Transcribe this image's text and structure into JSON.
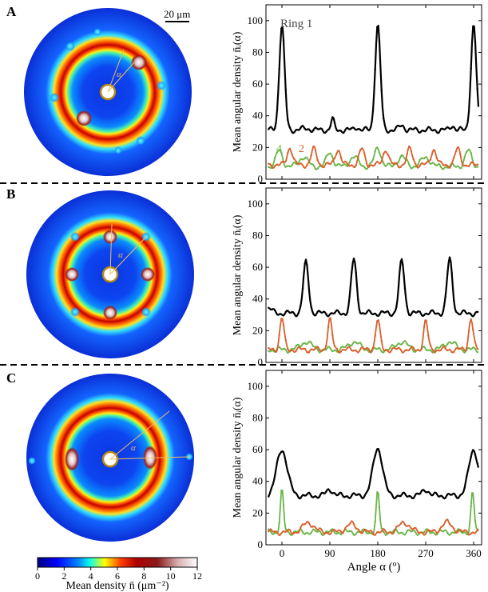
{
  "figure": {
    "panels": [
      {
        "letter": "A"
      },
      {
        "letter": "B"
      },
      {
        "letter": "C"
      }
    ],
    "scalebar": "20 μm",
    "angle_symbol": "α",
    "ring_label": "Ring 1",
    "ring_numbers": [
      "4",
      "2"
    ],
    "colorbar": {
      "label": "Mean density n̄ (μm⁻²)",
      "ticks": [
        0,
        2,
        4,
        6,
        8,
        10,
        12
      ]
    }
  },
  "colors": {
    "ring1": "#000000",
    "ring2": "#d9602b",
    "ring4": "#6ab548",
    "disk_background": "#0a2fd6",
    "divider": "#000000"
  },
  "chart_data": [
    {
      "type": "line",
      "panel": "A",
      "ylabel": "Mean angular density n̄ᵢ(α)",
      "xlabel": "",
      "xlim": [
        -30,
        375
      ],
      "ylim": [
        0,
        110
      ],
      "yticks": [
        0,
        20,
        40,
        60,
        80,
        100
      ],
      "xticks": [
        0,
        90,
        180,
        270,
        360
      ],
      "series": [
        {
          "name": "Ring 1",
          "color": "#000000",
          "base": 31,
          "peaks": [
            [
              0,
              97,
              5
            ],
            [
              180,
              97,
              5
            ],
            [
              360,
              97,
              5
            ],
            [
              95,
              38,
              3
            ],
            [
              140,
              33,
              4
            ],
            [
              225,
              34,
              5
            ],
            [
              320,
              34,
              4
            ],
            [
              45,
              32,
              8
            ]
          ]
        },
        {
          "name": "2",
          "color": "#d9602b",
          "base": 9,
          "peaks": [
            [
              15,
              20,
              5
            ],
            [
              60,
              19,
              5
            ],
            [
              105,
              19,
              5
            ],
            [
              150,
              19,
              5
            ],
            [
              195,
              19,
              5
            ],
            [
              240,
              19,
              5
            ],
            [
              285,
              19,
              5
            ],
            [
              330,
              19,
              5
            ]
          ]
        },
        {
          "name": "4",
          "color": "#6ab548",
          "base": 8,
          "peaks": [
            [
              -5,
              18,
              6
            ],
            [
              40,
              14,
              8
            ],
            [
              90,
              17,
              6
            ],
            [
              135,
              14,
              8
            ],
            [
              180,
              20,
              6
            ],
            [
              225,
              14,
              8
            ],
            [
              270,
              14,
              8
            ],
            [
              350,
              18,
              6
            ]
          ]
        }
      ]
    },
    {
      "type": "line",
      "panel": "B",
      "ylabel": "Mean angular density n̄ᵢ(α)",
      "xlabel": "",
      "xlim": [
        -30,
        375
      ],
      "ylim": [
        0,
        110
      ],
      "yticks": [
        0,
        20,
        40,
        60,
        80,
        100
      ],
      "xticks": [
        0,
        90,
        180,
        270,
        360
      ],
      "series": [
        {
          "name": "",
          "color": "#000000",
          "base": 31,
          "peaks": [
            [
              45,
              63,
              5
            ],
            [
              135,
              65,
              5
            ],
            [
              225,
              64,
              5
            ],
            [
              315,
              65,
              5
            ],
            [
              -25,
              34,
              6
            ]
          ]
        },
        {
          "name": "",
          "color": "#d9602b",
          "base": 8,
          "peaks": [
            [
              0,
              28,
              4
            ],
            [
              90,
              27,
              4
            ],
            [
              180,
              27,
              4
            ],
            [
              270,
              26,
              4
            ],
            [
              355,
              28,
              4
            ]
          ]
        },
        {
          "name": "",
          "color": "#6ab548",
          "base": 8,
          "peaks": [
            [
              45,
              13,
              10
            ],
            [
              135,
              13,
              10
            ],
            [
              225,
              13,
              10
            ],
            [
              315,
              13,
              10
            ]
          ]
        }
      ]
    },
    {
      "type": "line",
      "panel": "C",
      "ylabel": "Mean angular density n̄ᵢ(α)",
      "xlabel": "Angle α (º)",
      "xlim": [
        -30,
        375
      ],
      "ylim": [
        0,
        110
      ],
      "yticks": [
        0,
        20,
        40,
        60,
        80,
        100
      ],
      "xticks": [
        0,
        90,
        180,
        270,
        360
      ],
      "series": [
        {
          "name": "",
          "color": "#000000",
          "base": 31,
          "peaks": [
            [
              0,
              60,
              10
            ],
            [
              180,
              61,
              9
            ],
            [
              360,
              60,
              9
            ],
            [
              90,
              35,
              6
            ],
            [
              270,
              35,
              6
            ]
          ]
        },
        {
          "name": "",
          "color": "#d9602b",
          "base": 8,
          "peaks": [
            [
              50,
              14,
              10
            ],
            [
              130,
              13,
              10
            ],
            [
              230,
              14,
              10
            ],
            [
              310,
              14,
              10
            ]
          ]
        },
        {
          "name": "",
          "color": "#6ab548",
          "base": 8,
          "peaks": [
            [
              0,
              34,
              3
            ],
            [
              180,
              33,
              3
            ],
            [
              358,
              33,
              3
            ]
          ]
        }
      ]
    }
  ]
}
